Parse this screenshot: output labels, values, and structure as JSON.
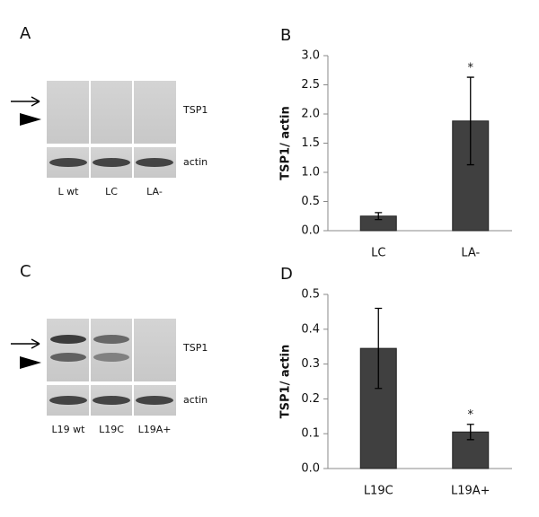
{
  "blots": [
    {
      "panel": "A",
      "lanes": [
        "L wt",
        "LC",
        "LA-"
      ],
      "bands": [
        "TSP1",
        "actin"
      ]
    },
    {
      "panel": "C",
      "lanes": [
        "L19 wt",
        "L19C",
        "L19A+"
      ],
      "bands": [
        "TSP1",
        "actin"
      ]
    }
  ],
  "chart_data": [
    {
      "type": "bar",
      "panel": "B",
      "y_label": "TSP1/ actin",
      "categories": [
        "LC",
        "LA-"
      ],
      "values": [
        0.25,
        1.88
      ],
      "errors": [
        0.06,
        0.75
      ],
      "significance": [
        null,
        "*"
      ],
      "color": "#404040",
      "ylim": [
        0,
        3
      ],
      "yticks": [
        {
          "value": 0,
          "label": "0.0"
        },
        0.5,
        {
          "value": 1,
          "label": "1.0"
        },
        1.5,
        {
          "value": 2,
          "label": "2.0"
        },
        2.5,
        {
          "value": 3,
          "label": "3.0"
        }
      ],
      "grid": false
    },
    {
      "type": "bar",
      "panel": "D",
      "y_label": "TSP1/ actin",
      "categories": [
        "L19C",
        "L19A+"
      ],
      "values": [
        0.345,
        0.105
      ],
      "errors": [
        0.115,
        0.022
      ],
      "significance": [
        null,
        "*"
      ],
      "color": "#404040",
      "ylim": [
        0,
        0.5
      ],
      "yticks": [
        {
          "value": 0,
          "label": "0.0"
        },
        0.1,
        0.2,
        0.3,
        0.4,
        0.5
      ],
      "grid": false
    }
  ]
}
